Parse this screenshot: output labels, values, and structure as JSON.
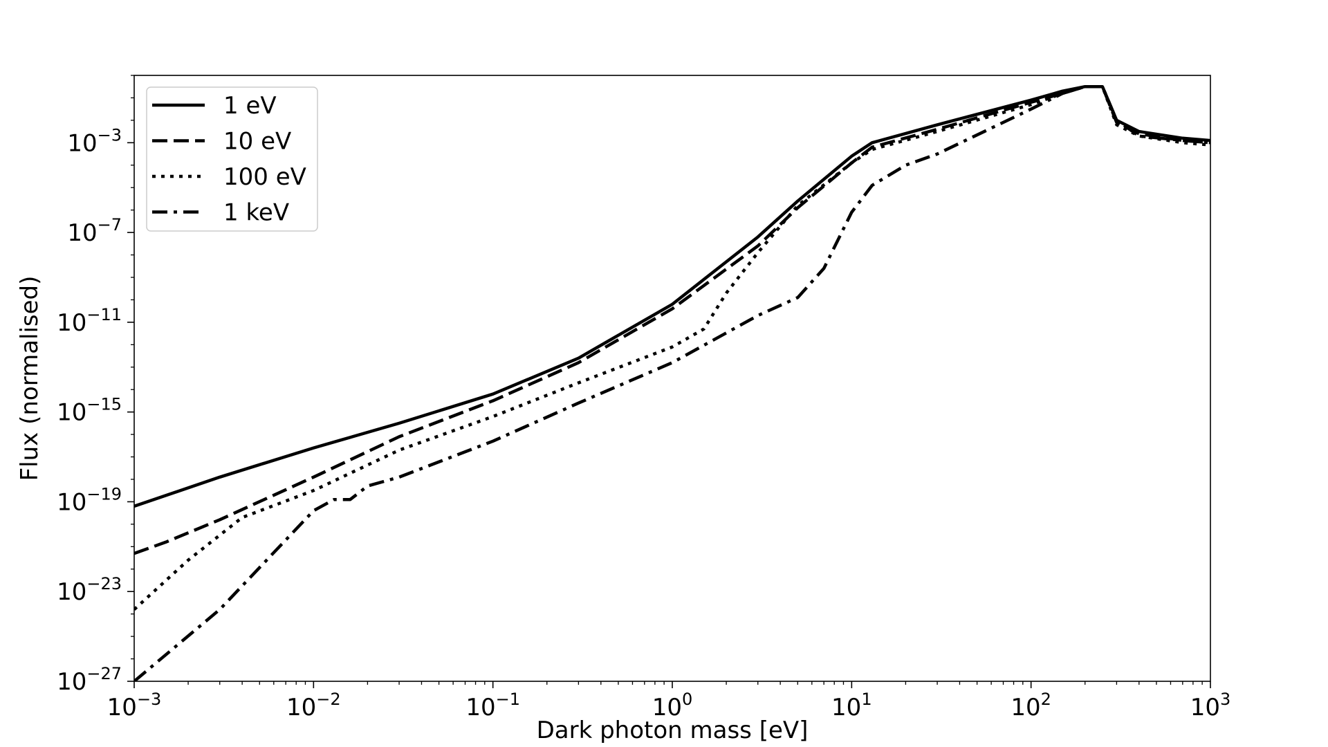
{
  "chart_data": {
    "type": "line",
    "title": "",
    "xlabel": "Dark photon mass [eV]",
    "ylabel": "Flux (normalised)",
    "xscale": "log",
    "yscale": "log",
    "xlim": [
      0.001,
      1000
    ],
    "ylim": [
      1e-27,
      1.0
    ],
    "grid": false,
    "legend_position": "top-left",
    "x_ticks": [
      {
        "value": 0.001,
        "base": "10",
        "exp": "−3"
      },
      {
        "value": 0.01,
        "base": "10",
        "exp": "−2"
      },
      {
        "value": 0.1,
        "base": "10",
        "exp": "−1"
      },
      {
        "value": 1,
        "base": "10",
        "exp": "0"
      },
      {
        "value": 10,
        "base": "10",
        "exp": "1"
      },
      {
        "value": 100,
        "base": "10",
        "exp": "2"
      },
      {
        "value": 1000,
        "base": "10",
        "exp": "3"
      }
    ],
    "y_ticks": [
      {
        "value": 1e-27,
        "base": "10",
        "exp": "−27"
      },
      {
        "value": 1e-23,
        "base": "10",
        "exp": "−23"
      },
      {
        "value": 1e-19,
        "base": "10",
        "exp": "−19"
      },
      {
        "value": 1e-15,
        "base": "10",
        "exp": "−15"
      },
      {
        "value": 1e-11,
        "base": "10",
        "exp": "−11"
      },
      {
        "value": 1e-07,
        "base": "10",
        "exp": "−7"
      },
      {
        "value": 0.001,
        "base": "10",
        "exp": "−3"
      }
    ],
    "series": [
      {
        "name": "1 eV",
        "style": "solid",
        "points": [
          [
            0.001,
            -19.2
          ],
          [
            0.003,
            -17.9
          ],
          [
            0.01,
            -16.6
          ],
          [
            0.03,
            -15.5
          ],
          [
            0.1,
            -14.2
          ],
          [
            0.3,
            -12.6
          ],
          [
            1,
            -10.2
          ],
          [
            3,
            -7.2
          ],
          [
            5,
            -5.6
          ],
          [
            10,
            -3.6
          ],
          [
            13,
            -3.0
          ],
          [
            30,
            -2.2
          ],
          [
            100,
            -1.1
          ],
          [
            150,
            -0.7
          ],
          [
            200,
            -0.5
          ],
          [
            250,
            -0.5
          ],
          [
            300,
            -2.0
          ],
          [
            400,
            -2.5
          ],
          [
            700,
            -2.8
          ],
          [
            1000,
            -2.9
          ]
        ]
      },
      {
        "name": "10 eV",
        "style": "dashed",
        "points": [
          [
            0.001,
            -21.3
          ],
          [
            0.0015,
            -20.8
          ],
          [
            0.003,
            -19.8
          ],
          [
            0.01,
            -17.9
          ],
          [
            0.03,
            -16.1
          ],
          [
            0.1,
            -14.5
          ],
          [
            0.3,
            -12.8
          ],
          [
            1,
            -10.4
          ],
          [
            3,
            -7.6
          ],
          [
            5,
            -5.9
          ],
          [
            10,
            -3.9
          ],
          [
            13,
            -3.2
          ],
          [
            30,
            -2.4
          ],
          [
            100,
            -1.2
          ],
          [
            150,
            -0.8
          ],
          [
            200,
            -0.5
          ],
          [
            250,
            -0.5
          ],
          [
            300,
            -2.1
          ],
          [
            400,
            -2.6
          ],
          [
            700,
            -2.9
          ],
          [
            1000,
            -3.0
          ]
        ]
      },
      {
        "name": "100 eV",
        "style": "dotted",
        "points": [
          [
            0.001,
            -23.8
          ],
          [
            0.002,
            -21.6
          ],
          [
            0.004,
            -19.7
          ],
          [
            0.01,
            -18.5
          ],
          [
            0.03,
            -16.7
          ],
          [
            0.1,
            -15.2
          ],
          [
            0.3,
            -13.7
          ],
          [
            1,
            -12.1
          ],
          [
            1.5,
            -11.3
          ],
          [
            2,
            -9.7
          ],
          [
            3,
            -7.9
          ],
          [
            5,
            -5.8
          ],
          [
            10,
            -3.9
          ],
          [
            13,
            -3.3
          ],
          [
            30,
            -2.5
          ],
          [
            100,
            -1.3
          ],
          [
            150,
            -0.8
          ],
          [
            200,
            -0.5
          ],
          [
            250,
            -0.5
          ],
          [
            300,
            -2.2
          ],
          [
            400,
            -2.7
          ],
          [
            700,
            -3.0
          ],
          [
            1000,
            -3.1
          ]
        ]
      },
      {
        "name": "1 keV",
        "style": "dashdot",
        "points": [
          [
            0.001,
            -27.0
          ],
          [
            0.003,
            -23.8
          ],
          [
            0.01,
            -19.4
          ],
          [
            0.013,
            -18.9
          ],
          [
            0.016,
            -18.9
          ],
          [
            0.02,
            -18.3
          ],
          [
            0.03,
            -17.9
          ],
          [
            0.1,
            -16.3
          ],
          [
            0.3,
            -14.6
          ],
          [
            1,
            -12.8
          ],
          [
            3,
            -10.7
          ],
          [
            5,
            -9.9
          ],
          [
            7,
            -8.6
          ],
          [
            10,
            -6.1
          ],
          [
            13,
            -4.9
          ],
          [
            20,
            -4.0
          ],
          [
            30,
            -3.5
          ],
          [
            100,
            -1.5
          ],
          [
            150,
            -0.8
          ],
          [
            200,
            -0.5
          ],
          [
            250,
            -0.5
          ],
          [
            300,
            -2.0
          ],
          [
            400,
            -2.7
          ],
          [
            700,
            -2.9
          ],
          [
            1000,
            -3.0
          ]
        ]
      }
    ]
  }
}
